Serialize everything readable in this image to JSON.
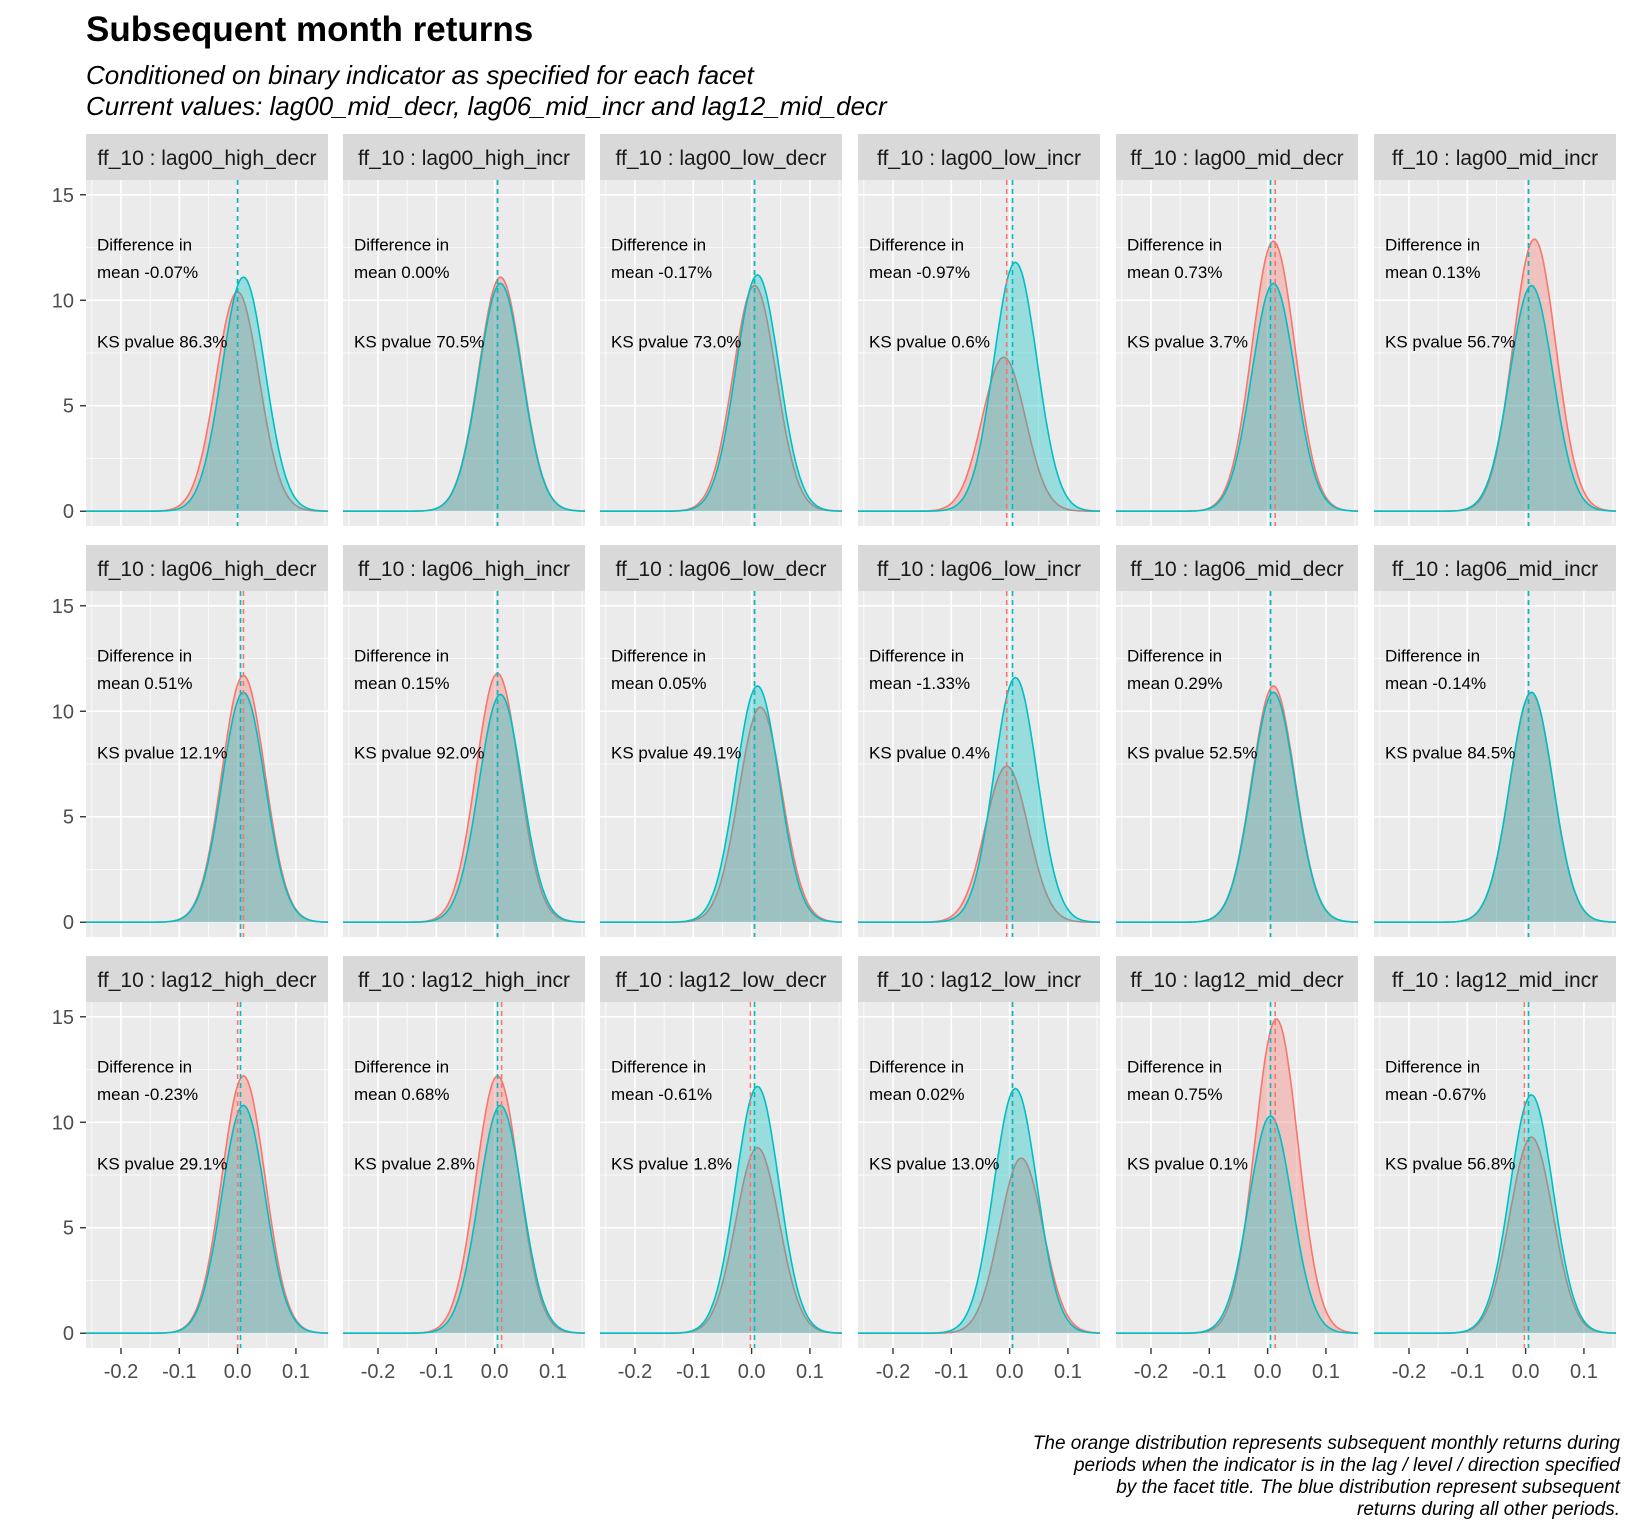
{
  "title": "Subsequent month returns",
  "subtitle_line1": "Conditioned on binary indicator as specified for each facet",
  "subtitle_line2": "Current values: lag00_mid_decr, lag06_mid_incr and lag12_mid_decr",
  "caption_lines": [
    "The orange distribution represents subsequent monthly returns during",
    "periods when the indicator is in the lag / level / direction specified",
    "by the facet title.  The blue distribution represent subsequent",
    "returns during all other periods."
  ],
  "colors": {
    "orange": "#F8766D",
    "blue": "#00BFC4",
    "panel_bg": "#EBEBEB",
    "strip_bg": "#D9D9D9",
    "grid": "#FFFFFF"
  },
  "chart_data": {
    "type": "area",
    "chart_kind": "faceted density plot",
    "xlim": [
      -0.26,
      0.155
    ],
    "ylim": [
      -0.7,
      15.7
    ],
    "x_ticks": [
      "-0.2",
      "-0.1",
      "0.0",
      "0.1"
    ],
    "x_tick_values": [
      -0.2,
      -0.1,
      0.0,
      0.1
    ],
    "y_ticks": [
      "0",
      "5",
      "10",
      "15"
    ],
    "y_tick_values": [
      0,
      5,
      10,
      15
    ],
    "annotation_labels": {
      "diff_line1": "Difference in",
      "diff_prefix": "mean ",
      "ks_prefix": "KS pvalue "
    },
    "facets": [
      {
        "label": "ff_10 : lag00_high_decr",
        "diff": "-0.07%",
        "ks": "86.3%",
        "mean_orange": 0.0,
        "mean_blue": 0.0,
        "orange": {
          "mu": 0.0,
          "peak": 10.4
        },
        "blue": {
          "mu": 0.01,
          "peak": 11.1
        }
      },
      {
        "label": "ff_10 : lag00_high_incr",
        "diff": "0.00%",
        "ks": "70.5%",
        "mean_orange": 0.005,
        "mean_blue": 0.005,
        "orange": {
          "mu": 0.01,
          "peak": 11.1
        },
        "blue": {
          "mu": 0.01,
          "peak": 10.8
        }
      },
      {
        "label": "ff_10 : lag00_low_decr",
        "diff": "-0.17%",
        "ks": "73.0%",
        "mean_orange": 0.005,
        "mean_blue": 0.005,
        "orange": {
          "mu": 0.005,
          "peak": 10.7
        },
        "blue": {
          "mu": 0.01,
          "peak": 11.2
        }
      },
      {
        "label": "ff_10 : lag00_low_incr",
        "diff": "-0.97%",
        "ks": "0.6%",
        "mean_orange": -0.005,
        "mean_blue": 0.005,
        "orange": {
          "mu": -0.01,
          "peak": 7.3
        },
        "blue": {
          "mu": 0.01,
          "peak": 11.8
        }
      },
      {
        "label": "ff_10 : lag00_mid_decr",
        "diff": "0.73%",
        "ks": "3.7%",
        "mean_orange": 0.013,
        "mean_blue": 0.005,
        "orange": {
          "mu": 0.01,
          "peak": 12.8
        },
        "blue": {
          "mu": 0.01,
          "peak": 10.8
        }
      },
      {
        "label": "ff_10 : lag00_mid_incr",
        "diff": "0.13%",
        "ks": "56.7%",
        "mean_orange": 0.005,
        "mean_blue": 0.005,
        "orange": {
          "mu": 0.015,
          "peak": 12.9
        },
        "blue": {
          "mu": 0.01,
          "peak": 10.7
        }
      },
      {
        "label": "ff_10 : lag06_high_decr",
        "diff": "0.51%",
        "ks": "12.1%",
        "mean_orange": 0.01,
        "mean_blue": 0.005,
        "orange": {
          "mu": 0.01,
          "peak": 11.7
        },
        "blue": {
          "mu": 0.01,
          "peak": 10.9
        }
      },
      {
        "label": "ff_10 : lag06_high_incr",
        "diff": "0.15%",
        "ks": "92.0%",
        "mean_orange": 0.005,
        "mean_blue": 0.005,
        "orange": {
          "mu": 0.005,
          "peak": 11.8
        },
        "blue": {
          "mu": 0.01,
          "peak": 10.8
        }
      },
      {
        "label": "ff_10 : lag06_low_decr",
        "diff": "0.05%",
        "ks": "49.1%",
        "mean_orange": 0.005,
        "mean_blue": 0.005,
        "orange": {
          "mu": 0.015,
          "peak": 10.2
        },
        "blue": {
          "mu": 0.01,
          "peak": 11.2
        }
      },
      {
        "label": "ff_10 : lag06_low_incr",
        "diff": "-1.33%",
        "ks": "0.4%",
        "mean_orange": -0.005,
        "mean_blue": 0.005,
        "orange": {
          "mu": -0.005,
          "peak": 7.4
        },
        "blue": {
          "mu": 0.01,
          "peak": 11.6
        }
      },
      {
        "label": "ff_10 : lag06_mid_decr",
        "diff": "0.29%",
        "ks": "52.5%",
        "mean_orange": 0.005,
        "mean_blue": 0.005,
        "orange": {
          "mu": 0.01,
          "peak": 11.2
        },
        "blue": {
          "mu": 0.01,
          "peak": 10.9
        }
      },
      {
        "label": "ff_10 : lag06_mid_incr",
        "diff": "-0.14%",
        "ks": "84.5%",
        "mean_orange": 0.005,
        "mean_blue": 0.005,
        "orange": {
          "mu": 0.01,
          "peak": 10.9
        },
        "blue": {
          "mu": 0.01,
          "peak": 10.9
        }
      },
      {
        "label": "ff_10 : lag12_high_decr",
        "diff": "-0.23%",
        "ks": "29.1%",
        "mean_orange": 0.0,
        "mean_blue": 0.005,
        "orange": {
          "mu": 0.01,
          "peak": 12.2
        },
        "blue": {
          "mu": 0.01,
          "peak": 10.8
        }
      },
      {
        "label": "ff_10 : lag12_high_incr",
        "diff": "0.68%",
        "ks": "2.8%",
        "mean_orange": 0.012,
        "mean_blue": 0.005,
        "orange": {
          "mu": 0.005,
          "peak": 12.2
        },
        "blue": {
          "mu": 0.01,
          "peak": 10.8
        }
      },
      {
        "label": "ff_10 : lag12_low_decr",
        "diff": "-0.61%",
        "ks": "1.8%",
        "mean_orange": -0.002,
        "mean_blue": 0.005,
        "orange": {
          "mu": 0.01,
          "peak": 8.8
        },
        "blue": {
          "mu": 0.01,
          "peak": 11.7
        }
      },
      {
        "label": "ff_10 : lag12_low_incr",
        "diff": "0.02%",
        "ks": "13.0%",
        "mean_orange": 0.005,
        "mean_blue": 0.005,
        "orange": {
          "mu": 0.02,
          "peak": 8.3
        },
        "blue": {
          "mu": 0.01,
          "peak": 11.6
        }
      },
      {
        "label": "ff_10 : lag12_mid_decr",
        "diff": "0.75%",
        "ks": "0.1%",
        "mean_orange": 0.013,
        "mean_blue": 0.005,
        "orange": {
          "mu": 0.015,
          "peak": 14.9
        },
        "blue": {
          "mu": 0.005,
          "peak": 10.3
        }
      },
      {
        "label": "ff_10 : lag12_mid_incr",
        "diff": "-0.67%",
        "ks": "56.8%",
        "mean_orange": -0.002,
        "mean_blue": 0.005,
        "orange": {
          "mu": 0.01,
          "peak": 9.3
        },
        "blue": {
          "mu": 0.01,
          "peak": 11.3
        }
      }
    ]
  }
}
